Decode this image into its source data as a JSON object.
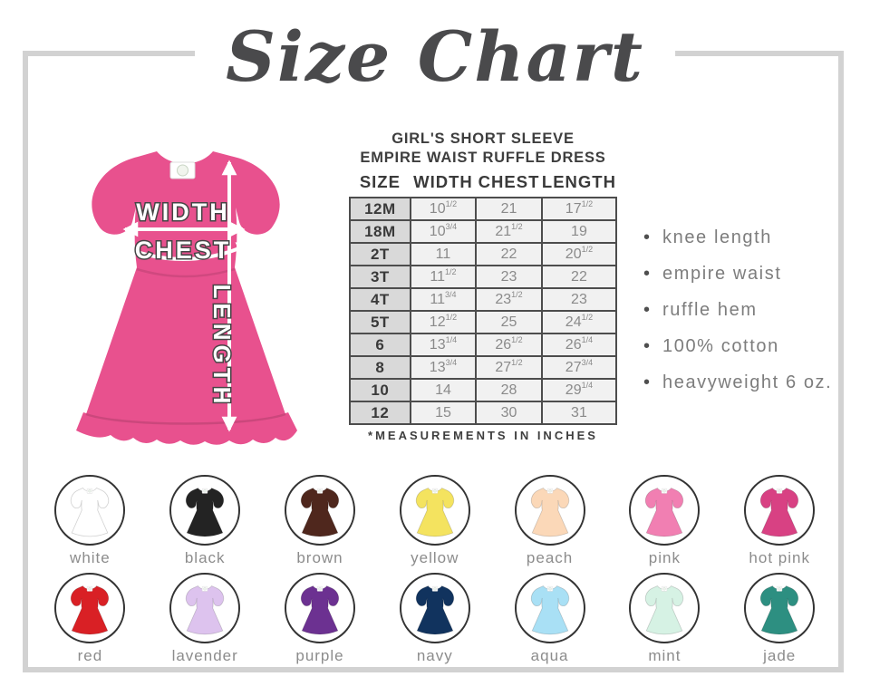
{
  "title": "Size Chart",
  "product": {
    "line1": "GIRL'S SHORT SLEEVE",
    "line2": "EMPIRE WAIST RUFFLE DRESS"
  },
  "diagram": {
    "dress_color": "#e8518e",
    "labels": {
      "width": "WIDTH",
      "chest": "CHEST",
      "length": "LENGTH"
    }
  },
  "table": {
    "headers": [
      "SIZE",
      "WIDTH",
      "CHEST",
      "LENGTH"
    ],
    "rows": [
      {
        "size": "12M",
        "width": "10 1/2",
        "chest": "21",
        "length": "17 1/2"
      },
      {
        "size": "18M",
        "width": "10 3/4",
        "chest": "21 1/2",
        "length": "19"
      },
      {
        "size": "2T",
        "width": "11",
        "chest": "22",
        "length": "20 1/2"
      },
      {
        "size": "3T",
        "width": "11 1/2",
        "chest": "23",
        "length": "22"
      },
      {
        "size": "4T",
        "width": "11 3/4",
        "chest": "23 1/2",
        "length": "23"
      },
      {
        "size": "5T",
        "width": "12 1/2",
        "chest": "25",
        "length": "24 1/2"
      },
      {
        "size": "6",
        "width": "13 1/4",
        "chest": "26 1/2",
        "length": "26 1/4"
      },
      {
        "size": "8",
        "width": "13 3/4",
        "chest": "27 1/2",
        "length": "27 3/4"
      },
      {
        "size": "10",
        "width": "14",
        "chest": "28",
        "length": "29 1/4"
      },
      {
        "size": "12",
        "width": "15",
        "chest": "30",
        "length": "31"
      }
    ],
    "note": "*MEASUREMENTS IN INCHES"
  },
  "features": [
    "knee length",
    "empire waist",
    "ruffle hem",
    "100% cotton",
    "heavyweight 6 oz."
  ],
  "colors": [
    {
      "name": "white",
      "hex": "#ffffff"
    },
    {
      "name": "black",
      "hex": "#232323"
    },
    {
      "name": "brown",
      "hex": "#4f271d"
    },
    {
      "name": "yellow",
      "hex": "#f4e35f"
    },
    {
      "name": "peach",
      "hex": "#fbd8b8"
    },
    {
      "name": "pink",
      "hex": "#f17fb2"
    },
    {
      "name": "hot pink",
      "hex": "#d84183"
    },
    {
      "name": "red",
      "hex": "#d92025"
    },
    {
      "name": "lavender",
      "hex": "#ddc3ee"
    },
    {
      "name": "purple",
      "hex": "#6c3191"
    },
    {
      "name": "navy",
      "hex": "#11335e"
    },
    {
      "name": "aqua",
      "hex": "#a9e0f5"
    },
    {
      "name": "mint",
      "hex": "#d6f2e4"
    },
    {
      "name": "jade",
      "hex": "#2d8f81"
    }
  ]
}
